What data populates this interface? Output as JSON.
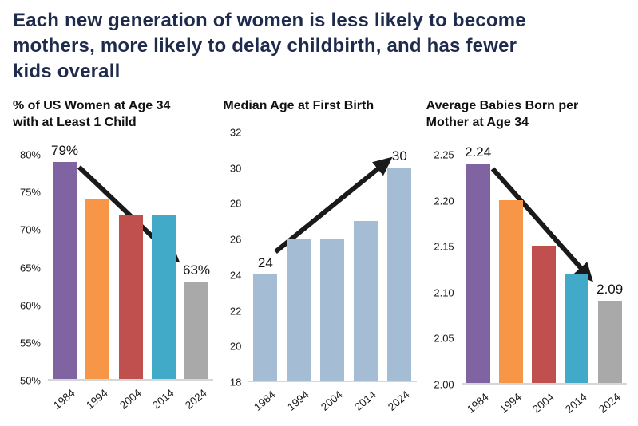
{
  "header": {
    "title": "Each new generation of women is less likely to become mothers, more likely to delay childbirth, and has fewer kids overall",
    "title_lines": [
      "Each new generation of women is less likely to become",
      "mothers, more likely to delay childbirth, and has fewer",
      "kids overall"
    ],
    "title_color": "#1f2b4d"
  },
  "palette": {
    "purple": "#8064A2",
    "orange": "#F79646",
    "red": "#C0504D",
    "teal": "#41AAC8",
    "gray": "#A9A9A9",
    "steel_blue": "#A4BDD4",
    "arrow_black": "#1a1a1a"
  },
  "chart_data": [
    {
      "type": "bar",
      "title": "% of US Women at Age 34 with at Least 1 Child",
      "title_lines": [
        "% of US Women at Age 34",
        "with at Least 1 Child"
      ],
      "categories": [
        "1984",
        "1994",
        "2004",
        "2014",
        "2024"
      ],
      "values": [
        79,
        74,
        72,
        72,
        63
      ],
      "bar_colors": [
        "#8064A2",
        "#F79646",
        "#C0504D",
        "#41AAC8",
        "#A9A9A9"
      ],
      "xlabel": "",
      "ylabel": "",
      "ylim": [
        50,
        80
      ],
      "ytick_labels": [
        "80%",
        "75%",
        "70%",
        "65%",
        "60%",
        "55%",
        "50%"
      ],
      "data_labels": {
        "first": "79%",
        "last": "63%"
      },
      "trend_arrow": "down",
      "grid": false,
      "legend": false
    },
    {
      "type": "bar",
      "title": "Median Age at First Birth",
      "title_lines": [
        "Median Age at First Birth"
      ],
      "categories": [
        "1984",
        "1994",
        "2004",
        "2014",
        "2024"
      ],
      "values": [
        24,
        26,
        26,
        27,
        30
      ],
      "bar_colors": [
        "#A4BDD4",
        "#A4BDD4",
        "#A4BDD4",
        "#A4BDD4",
        "#A4BDD4"
      ],
      "xlabel": "",
      "ylabel": "",
      "ylim": [
        18,
        32
      ],
      "ytick_labels": [
        "32",
        "30",
        "28",
        "26",
        "24",
        "22",
        "20",
        "18"
      ],
      "data_labels": {
        "first": "24",
        "last": "30"
      },
      "trend_arrow": "up",
      "grid": false,
      "legend": false
    },
    {
      "type": "bar",
      "title": "Average Babies Born per Mother at Age 34",
      "title_lines": [
        "Average Babies Born per",
        "Mother at Age 34"
      ],
      "categories": [
        "1984",
        "1994",
        "2004",
        "2014",
        "2024"
      ],
      "values": [
        2.24,
        2.2,
        2.15,
        2.12,
        2.09
      ],
      "bar_colors": [
        "#8064A2",
        "#F79646",
        "#C0504D",
        "#41AAC8",
        "#A9A9A9"
      ],
      "xlabel": "",
      "ylabel": "",
      "ylim": [
        2.0,
        2.25
      ],
      "ytick_labels": [
        "2.25",
        "2.20",
        "2.15",
        "2.10",
        "2.05",
        "2.00"
      ],
      "data_labels": {
        "first": "2.24",
        "last": "2.09"
      },
      "trend_arrow": "down",
      "grid": false,
      "legend": false
    }
  ]
}
